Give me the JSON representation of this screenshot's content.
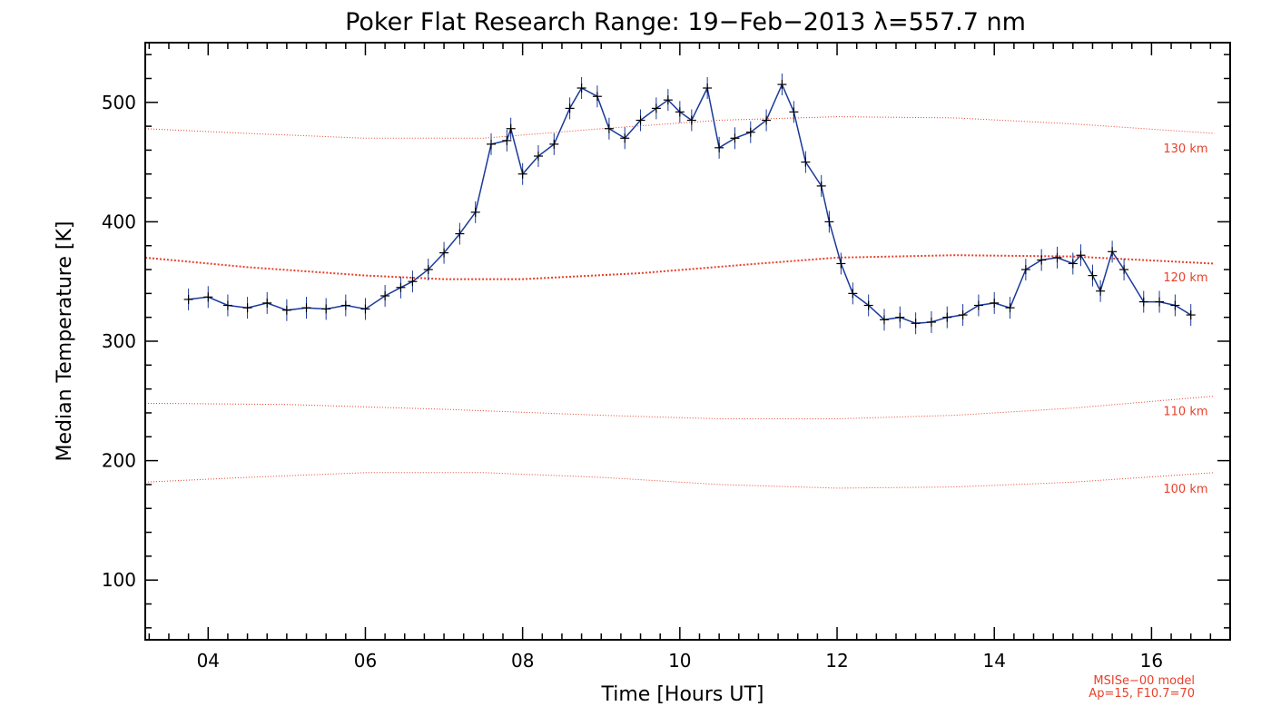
{
  "chart_data": {
    "type": "line",
    "title": "Poker Flat Research Range: 19−Feb−2013 λ=557.7 nm",
    "xlabel": "Time [Hours UT]",
    "ylabel": "Median Temperature [K]",
    "xlim": [
      3.2,
      17.0
    ],
    "ylim": [
      50,
      550
    ],
    "x_ticks": [
      4,
      6,
      8,
      10,
      12,
      14,
      16
    ],
    "x_tick_labels": [
      "04",
      "06",
      "08",
      "10",
      "12",
      "14",
      "16"
    ],
    "y_ticks": [
      100,
      200,
      300,
      400,
      500
    ],
    "y_tick_labels": [
      "100",
      "200",
      "300",
      "400",
      "500"
    ],
    "grid": false,
    "colors": {
      "series": "#1a3a9a",
      "marker": "#000000",
      "model": "#e8402a"
    },
    "series": [
      {
        "x": [
          3.75,
          4.0,
          4.25,
          4.5,
          4.75,
          5.0,
          5.25,
          5.5,
          5.75,
          6.0,
          6.25,
          6.45,
          6.6,
          6.8,
          7.0,
          7.2,
          7.4,
          7.6,
          7.8,
          7.85,
          8.0,
          8.2,
          8.4,
          8.6,
          8.75,
          8.95,
          9.1,
          9.3,
          9.5,
          9.7,
          9.85,
          10.0,
          10.15,
          10.35,
          10.5,
          10.7,
          10.9,
          11.1,
          11.3,
          11.45,
          11.6,
          11.8,
          11.9,
          12.05,
          12.2,
          12.4,
          12.6,
          12.8,
          13.0,
          13.2,
          13.4,
          13.6,
          13.8,
          14.0,
          14.2,
          14.4,
          14.6,
          14.8,
          15.0,
          15.1,
          15.25,
          15.35,
          15.5,
          15.65,
          15.9,
          16.1,
          16.3,
          16.5
        ],
        "y": [
          335,
          337,
          330,
          328,
          332,
          326,
          328,
          327,
          330,
          327,
          338,
          345,
          350,
          360,
          374,
          390,
          408,
          465,
          468,
          478,
          440,
          455,
          465,
          495,
          512,
          505,
          478,
          470,
          485,
          495,
          502,
          492,
          485,
          512,
          462,
          470,
          475,
          485,
          515,
          492,
          450,
          430,
          400,
          365,
          340,
          330,
          318,
          320,
          315,
          316,
          320,
          322,
          330,
          332,
          328,
          360,
          368,
          370,
          365,
          372,
          355,
          342,
          375,
          360,
          333,
          333,
          330,
          322
        ]
      }
    ],
    "model_curves": [
      {
        "label": "130 km",
        "x": [
          3.2,
          4.5,
          6.0,
          7.5,
          9.0,
          10.5,
          12.0,
          13.5,
          15.0,
          16.8
        ],
        "y": [
          478,
          474,
          470,
          470,
          478,
          485,
          488,
          487,
          482,
          474
        ]
      },
      {
        "label": "120 km",
        "x": [
          3.2,
          4.5,
          6.0,
          7.0,
          8.0,
          9.5,
          11.0,
          12.0,
          13.5,
          15.0,
          16.8
        ],
        "y": [
          370,
          362,
          355,
          352,
          352,
          357,
          365,
          370,
          372,
          371,
          365
        ]
      },
      {
        "label": "110 km",
        "x": [
          3.2,
          5.0,
          7.0,
          9.0,
          10.5,
          12.0,
          13.5,
          15.0,
          16.8
        ],
        "y": [
          248,
          247,
          243,
          238,
          235,
          235,
          238,
          244,
          254
        ]
      },
      {
        "label": "100 km",
        "x": [
          3.2,
          4.5,
          6.0,
          7.5,
          9.0,
          10.5,
          12.0,
          13.5,
          15.0,
          16.8
        ],
        "y": [
          182,
          186,
          190,
          190,
          186,
          180,
          177,
          178,
          182,
          190
        ]
      }
    ],
    "model_label_positions": [
      {
        "label": "130 km",
        "x": 16.15,
        "y": 458
      },
      {
        "label": "120 km",
        "x": 16.15,
        "y": 350
      },
      {
        "label": "110 km",
        "x": 16.15,
        "y": 238
      },
      {
        "label": "100 km",
        "x": 16.15,
        "y": 173
      }
    ],
    "annotation": [
      "MSISe−00 model",
      "Ap=15, F10.7=70"
    ]
  }
}
